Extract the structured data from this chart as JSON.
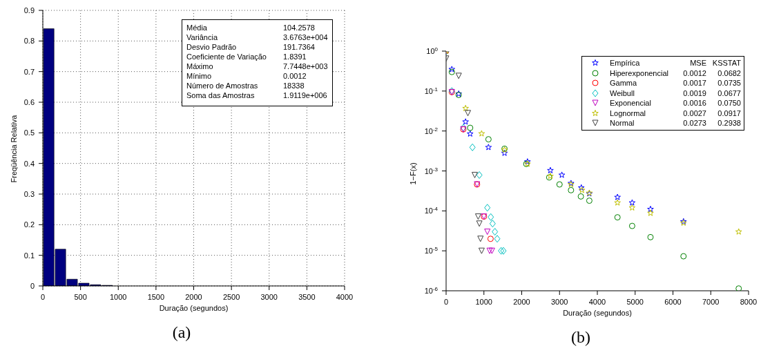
{
  "chart_data": [
    {
      "type": "histogram",
      "title": "(a)",
      "xlabel": "Duração (segundos)",
      "ylabel": "Freqüência Relativa",
      "color": "#00007f",
      "grid": true,
      "bins": [
        0,
        155,
        310,
        465,
        620,
        775,
        930
      ],
      "values": [
        0.84,
        0.12,
        0.022,
        0.009,
        0.004,
        0.002
      ],
      "xlim": [
        0,
        4000
      ],
      "xticks": [
        0,
        500,
        1000,
        1500,
        2000,
        2500,
        3000,
        3500,
        4000
      ],
      "ylim": [
        0,
        0.9
      ],
      "yticks": [
        0,
        0.1,
        0.2,
        0.3,
        0.4,
        0.5,
        0.6,
        0.7,
        0.8,
        0.9
      ],
      "annotations": [
        "Média",
        "104.2578",
        "Variância",
        "3.6763e+004",
        "Desvio Padrão",
        "191.7364",
        "Coeficiente de Variação",
        "1.8391",
        "Máximo",
        "7.7448e+003",
        "Mínimo",
        "0.0012",
        "Número de Amostras",
        "18338",
        "Soma das Amostras",
        "1.9119e+006"
      ]
    },
    {
      "type": "scatter",
      "title": "(b)",
      "xlabel": "Duração (segundos)",
      "ylabel": "1−F(x)",
      "log": "y",
      "legend": "top right",
      "xlim": [
        0,
        8000
      ],
      "xticks": [
        0,
        1000,
        2000,
        3000,
        4000,
        5000,
        6000,
        7000,
        8000
      ],
      "ylim": [
        1e-06,
        1
      ],
      "yticks": [
        {
          "value": 1,
          "label": "10$^{0}$"
        },
        {
          "value": 0.1,
          "label": "10$^{-1}$"
        },
        {
          "value": 0.01,
          "label": "10$^{-2}$"
        },
        {
          "value": 0.001,
          "label": "10$^{-3}$"
        },
        {
          "value": 0.0001,
          "label": "10$^{-4}$"
        },
        {
          "value": 1e-05,
          "label": "10$^{-5}$"
        },
        {
          "value": 1e-06,
          "label": "10$^{-6}$"
        }
      ],
      "annotations": [
        "MSE",
        "KSSTAT",
        "0.0012",
        "0.0682",
        "0.0017",
        "0.0735",
        "0.0019",
        "0.0677",
        "0.0016",
        "0.0750",
        "0.0027",
        "0.0917",
        "0.0273",
        "0.2938"
      ],
      "series": [
        {
          "name": "Empírica",
          "color": "#0000ff",
          "marker": "star",
          "x": [
            152,
            333,
            515,
            636,
            1121,
            1545,
            2152,
            2758,
            3061,
            3303,
            3576,
            3788,
            4533,
            4921,
            5406,
            6279
          ],
          "values": [
            0.35,
            0.085,
            0.017,
            0.0085,
            0.0039,
            0.0028,
            0.0017,
            0.00103,
            0.00079,
            0.00049,
            0.00038,
            0.00027,
            0.00022,
            0.00016,
            0.00011,
            5.4e-05
          ]
        },
        {
          "name": "Hiperexponencial",
          "color": "#008000",
          "marker": "circle",
          "x": [
            152,
            333,
            636,
            1121,
            1545,
            2121,
            2727,
            3000,
            3303,
            3564,
            3788,
            4533,
            4921,
            5406,
            6279,
            7739
          ],
          "values": [
            0.3,
            0.08,
            0.012,
            0.0062,
            0.0036,
            0.0015,
            0.00069,
            0.00046,
            0.00033,
            0.00023,
            0.00018,
            6.9e-05,
            4.2e-05,
            2.2e-05,
            7.3e-06,
            1.14e-06
          ]
        },
        {
          "name": "Gamma",
          "color": "#ff0000",
          "marker": "circle",
          "x": [
            0,
            152,
            455,
            818,
            1000,
            1176
          ],
          "values": [
            1,
            0.094,
            0.011,
            0.00046,
            7.2e-05,
            2e-05
          ]
        },
        {
          "name": "Weibull",
          "color": "#00bfbf",
          "marker": "diamond",
          "x": [
            0,
            152,
            455,
            697,
            879,
            1091,
            1182,
            1230,
            1291,
            1352,
            1455,
            1515
          ],
          "values": [
            1,
            0.1,
            0.012,
            0.0039,
            0.00079,
            0.00012,
            7e-05,
            4.8e-05,
            3e-05,
            2e-05,
            1e-05,
            1e-05
          ]
        },
        {
          "name": "Exponencial",
          "color": "#bf00bf",
          "marker": "triangle",
          "x": [
            0,
            152,
            455,
            818,
            1000,
            1091,
            1152,
            1212
          ],
          "values": [
            1,
            0.094,
            0.011,
            0.00046,
            7.2e-05,
            3e-05,
            1e-05,
            1e-05
          ]
        },
        {
          "name": "Lognormal",
          "color": "#bfbf00",
          "marker": "star",
          "x": [
            0,
            515,
            939,
            1545,
            2152,
            2758,
            3303,
            3594,
            3788,
            4533,
            4921,
            5406,
            6279,
            7739
          ],
          "values": [
            1,
            0.037,
            0.0086,
            0.0034,
            0.0015,
            0.00074,
            0.00046,
            0.00033,
            0.00028,
            0.00016,
            0.00012,
            8.8e-05,
            5e-05,
            3e-05
          ]
        },
        {
          "name": "Normal",
          "color": "#404040",
          "marker": "triangle",
          "x": [
            0,
            333,
            576,
            758,
            848,
            879,
            909,
            939
          ],
          "values": [
            0.65,
            0.24,
            0.028,
            0.00079,
            7.2e-05,
            4.8e-05,
            2e-05,
            1e-05
          ]
        }
      ]
    }
  ]
}
